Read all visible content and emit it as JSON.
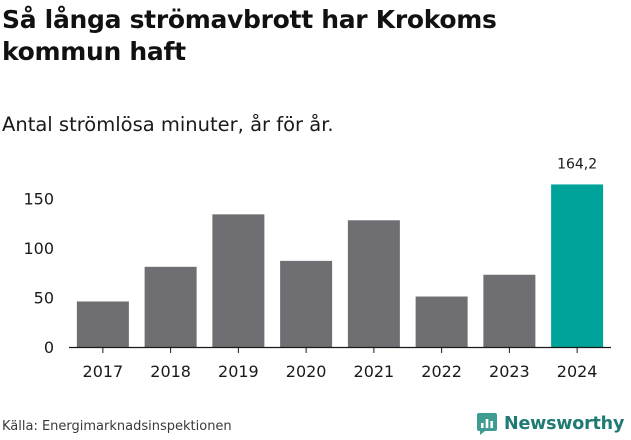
{
  "title": "Så långa strömavbrott har Krokoms kommun haft",
  "subtitle": "Antal strömlösa minuter, år för år.",
  "source": "Källa: Energimarknadsinspektionen",
  "brand": {
    "name": "Newsworthy",
    "color": "#1e7a72",
    "icon": "newsworthy-logo-icon"
  },
  "chart_data": {
    "type": "bar",
    "categories": [
      "2017",
      "2018",
      "2019",
      "2020",
      "2021",
      "2022",
      "2023",
      "2024"
    ],
    "values": [
      46,
      81,
      134,
      87,
      128,
      51,
      73,
      164.2
    ],
    "value_labels": [
      "",
      "",
      "",
      "",
      "",
      "",
      "",
      "164,2"
    ],
    "ylim": [
      0,
      170
    ],
    "yticks": [
      0,
      50,
      100,
      150
    ],
    "bar_color": "#6f6e72",
    "highlight_color": "#00a39a",
    "highlight_index": 7,
    "grid": false
  }
}
